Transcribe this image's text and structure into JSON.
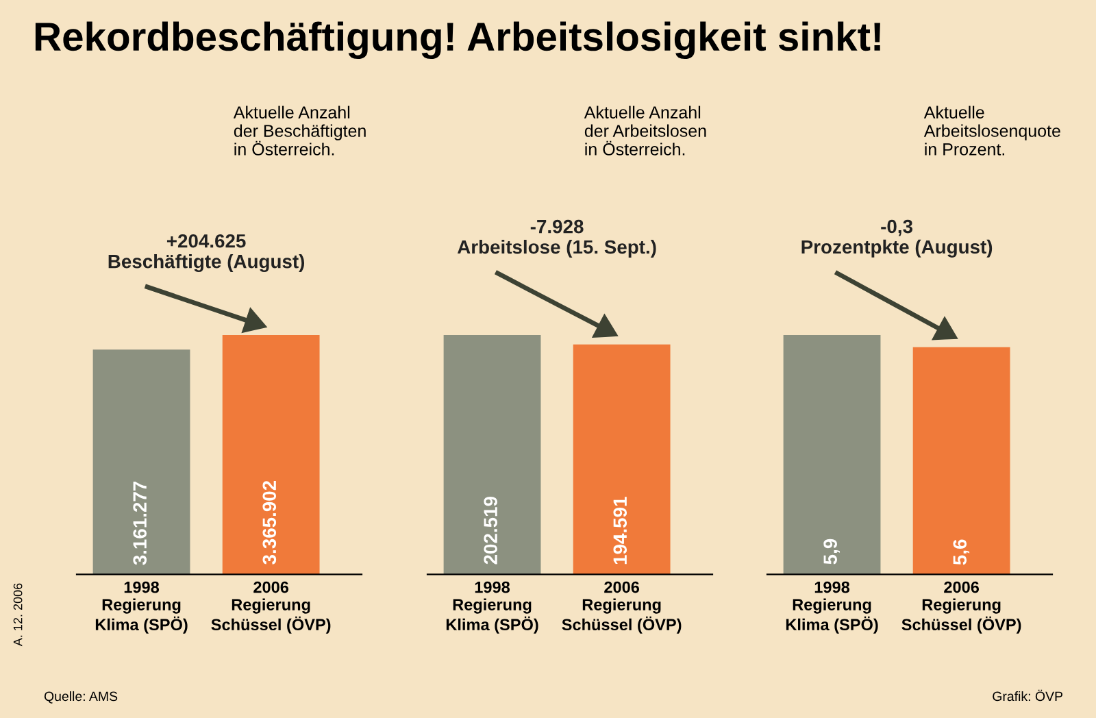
{
  "chart_data": [
    {
      "type": "bar",
      "title": "Rekordbeschäftigung! Arbeitslosigkeit sinkt!",
      "subtitle": "Aktuelle Anzahl\nder Beschäftigten\nin Österreich.",
      "categories": [
        "1998\nRegierung\nKlima (SPÖ)",
        "2006\nRegierung\nSchüssel (ÖVP)"
      ],
      "values": [
        3161277,
        3365902
      ],
      "value_labels": [
        "3.161.277",
        "3.365.902"
      ],
      "colors": [
        "#8c9180",
        "#f07a3a"
      ],
      "annotations": [
        "+204.625\nBeschäftigte (August)",
        "A. 12. 2006",
        "Quelle: AMS"
      ]
    },
    {
      "type": "bar",
      "subtitle": "Aktuelle Anzahl\nder Arbeitslosen\nin Österreich.",
      "categories": [
        "1998\nRegierung\nKlima (SPÖ)",
        "2006\nRegierung\nSchüssel (ÖVP)"
      ],
      "values": [
        202519,
        194591
      ],
      "value_labels": [
        "202.519",
        "194.591"
      ],
      "colors": [
        "#8c9180",
        "#f07a3a"
      ],
      "annotations": [
        "-7.928\nArbeitslose (15. Sept.)"
      ]
    },
    {
      "type": "bar",
      "subtitle": "Aktuelle\nArbeitslosenquote\nin Prozent.",
      "categories": [
        "1998\nRegierung\nKlima (SPÖ)",
        "2006\nRegierung\nSchüssel (ÖVP)"
      ],
      "values": [
        5.9,
        5.6
      ],
      "value_labels": [
        "5,9",
        "5,6"
      ],
      "colors": [
        "#8c9180",
        "#f07a3a"
      ],
      "annotations": [
        "-0,3\nProzentpkte (August)",
        "Grafik: ÖVP"
      ]
    }
  ]
}
